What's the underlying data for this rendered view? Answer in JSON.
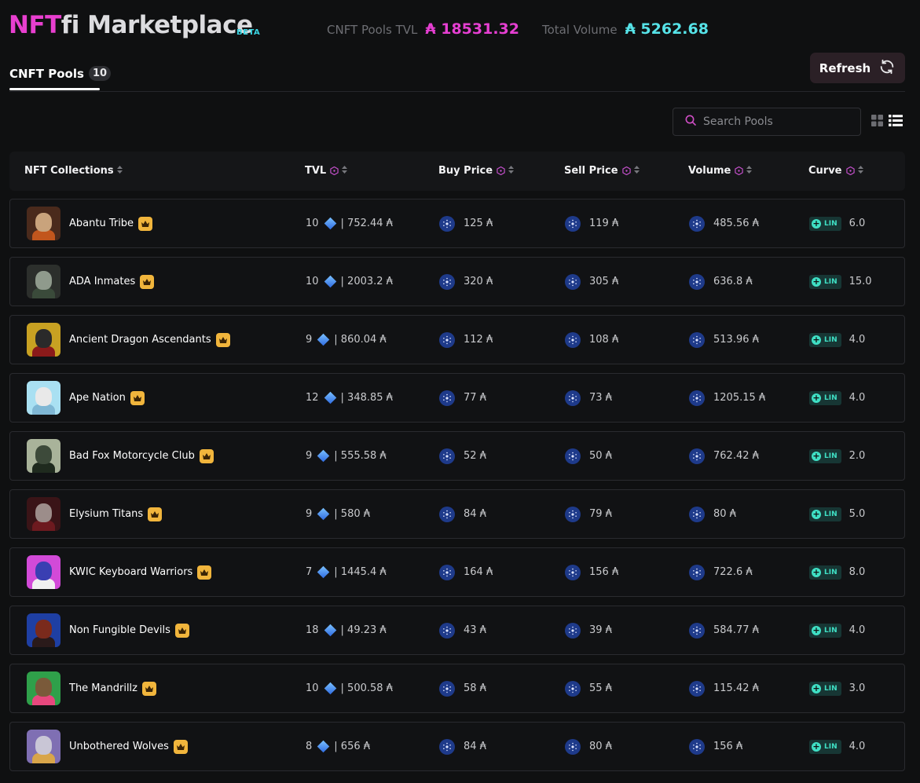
{
  "header": {
    "brand_accent": "NFT",
    "brand_rest": "fi Marketplace",
    "beta": "BETA",
    "tvl_label": "CNFT Pools TVL",
    "tvl_value": "₳ 18531.32",
    "volume_label": "Total Volume",
    "volume_value": "₳ 5262.68"
  },
  "tabs": {
    "label": "CNFT Pools",
    "count": "10"
  },
  "toolbar": {
    "refresh_label": "Refresh",
    "search_placeholder": "Search Pools"
  },
  "columns": {
    "collections": "NFT Collections",
    "tvl": "TVL",
    "buy": "Buy Price",
    "sell": "Sell Price",
    "volume": "Volume",
    "curve": "Curve"
  },
  "rows": [
    {
      "name": "Abantu Tribe",
      "nfts": "10",
      "tvl": "| 752.44 ₳",
      "buy": "125 ₳",
      "sell": "119 ₳",
      "volume": "485.56 ₳",
      "curve_type": "LIN",
      "curve": "6.0"
    },
    {
      "name": "ADA Inmates",
      "nfts": "10",
      "tvl": "| 2003.2 ₳",
      "buy": "320 ₳",
      "sell": "305 ₳",
      "volume": "636.8 ₳",
      "curve_type": "LIN",
      "curve": "15.0"
    },
    {
      "name": "Ancient Dragon Ascendants",
      "nfts": "9",
      "tvl": "| 860.04 ₳",
      "buy": "112 ₳",
      "sell": "108 ₳",
      "volume": "513.96 ₳",
      "curve_type": "LIN",
      "curve": "4.0"
    },
    {
      "name": "Ape Nation",
      "nfts": "12",
      "tvl": "| 348.85 ₳",
      "buy": "77 ₳",
      "sell": "73 ₳",
      "volume": "1205.15 ₳",
      "curve_type": "LIN",
      "curve": "4.0"
    },
    {
      "name": "Bad Fox Motorcycle Club",
      "nfts": "9",
      "tvl": "| 555.58 ₳",
      "buy": "52 ₳",
      "sell": "50 ₳",
      "volume": "762.42 ₳",
      "curve_type": "LIN",
      "curve": "2.0"
    },
    {
      "name": "Elysium Titans",
      "nfts": "9",
      "tvl": "| 580 ₳",
      "buy": "84 ₳",
      "sell": "79 ₳",
      "volume": "80 ₳",
      "curve_type": "LIN",
      "curve": "5.0"
    },
    {
      "name": "KWIC Keyboard Warriors",
      "nfts": "7",
      "tvl": "| 1445.4 ₳",
      "buy": "164 ₳",
      "sell": "156 ₳",
      "volume": "722.6 ₳",
      "curve_type": "LIN",
      "curve": "8.0"
    },
    {
      "name": "Non Fungible Devils",
      "nfts": "18",
      "tvl": "| 49.23 ₳",
      "buy": "43 ₳",
      "sell": "39 ₳",
      "volume": "584.77 ₳",
      "curve_type": "LIN",
      "curve": "4.0"
    },
    {
      "name": "The Mandrillz",
      "nfts": "10",
      "tvl": "| 500.58 ₳",
      "buy": "58 ₳",
      "sell": "55 ₳",
      "volume": "115.42 ₳",
      "curve_type": "LIN",
      "curve": "3.0"
    },
    {
      "name": "Unbothered Wolves",
      "nfts": "8",
      "tvl": "| 656 ₳",
      "buy": "84 ₳",
      "sell": "80 ₳",
      "volume": "156 ₳",
      "curve_type": "LIN",
      "curve": "4.0"
    }
  ],
  "avatars": [
    {
      "bg": "#4a2a1c",
      "face": "#c9a37c",
      "body": "#c2561d"
    },
    {
      "bg": "#2c2f2c",
      "face": "#8f9a8c",
      "body": "#3a4a3a"
    },
    {
      "bg": "#c8a122",
      "face": "#2a2a2a",
      "body": "#8a1a1a"
    },
    {
      "bg": "#a9e0f2",
      "face": "#e9e9e9",
      "body": "#7fb7d4"
    },
    {
      "bg": "#a9b39a",
      "face": "#3d4a3a",
      "body": "#1f2a1e"
    },
    {
      "bg": "#3a1417",
      "face": "#9c8d8a",
      "body": "#6d1a1f"
    },
    {
      "bg": "#d24ad8",
      "face": "#3a3fb2",
      "body": "#f0f0f0"
    },
    {
      "bg": "#1e3fa3",
      "face": "#7a2a1c",
      "body": "#2a1a1a"
    },
    {
      "bg": "#2fa04a",
      "face": "#7a5a3a",
      "body": "#e7487e"
    },
    {
      "bg": "#7f6fb3",
      "face": "#c9c6d6",
      "body": "#d8a54a"
    }
  ],
  "colors": {
    "brand_pink": "#e83fcf",
    "volume_cyan": "#56e3e8",
    "crown_gold": "#f1b53c",
    "lin_teal": "#3fe0c5",
    "ada_blue": "#1e3a8a"
  }
}
